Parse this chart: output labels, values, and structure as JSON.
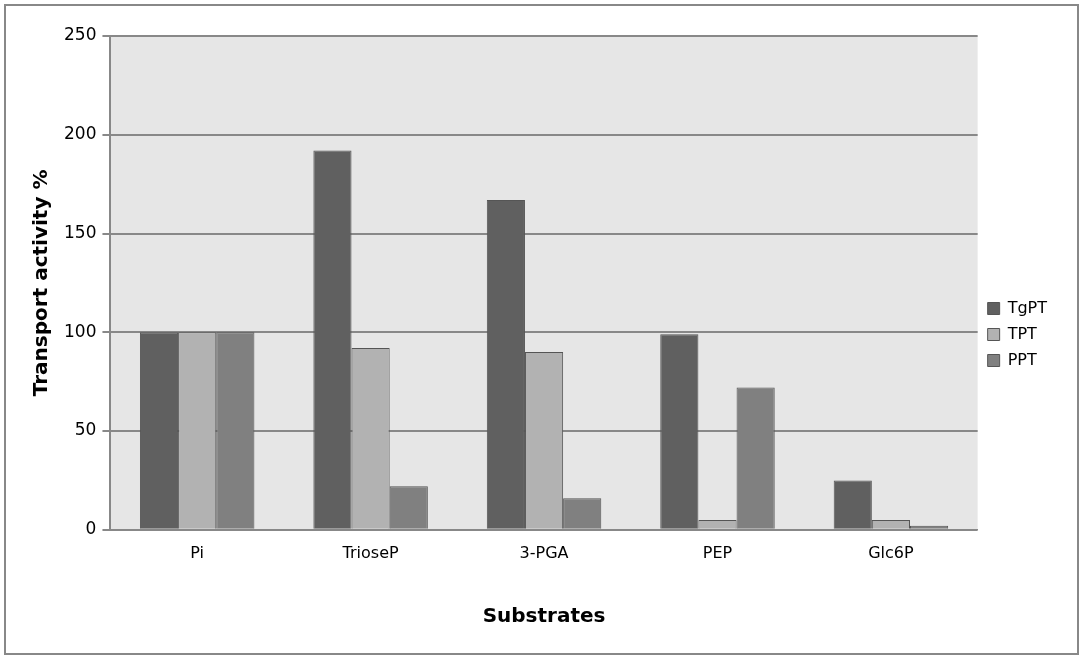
{
  "chart_data": {
    "type": "bar",
    "xlabel": "Substrates",
    "ylabel": "Transport activity %",
    "categories": [
      "Pi",
      "TrioseP",
      "3-PGA",
      "PEP",
      "Glc6P"
    ],
    "series": [
      {
        "name": "TgPT",
        "color": "#606060",
        "values": [
          100,
          192,
          167,
          99,
          25
        ]
      },
      {
        "name": "TPT",
        "color": "#b2b2b2",
        "values": [
          100,
          92,
          90,
          5,
          5
        ]
      },
      {
        "name": "PPT",
        "color": "#808080",
        "values": [
          100,
          22,
          16,
          72,
          2
        ]
      }
    ],
    "ylim": [
      0,
      250
    ],
    "yticks": [
      0,
      50,
      100,
      150,
      200,
      250
    ],
    "grid": "y",
    "legend": "right"
  }
}
